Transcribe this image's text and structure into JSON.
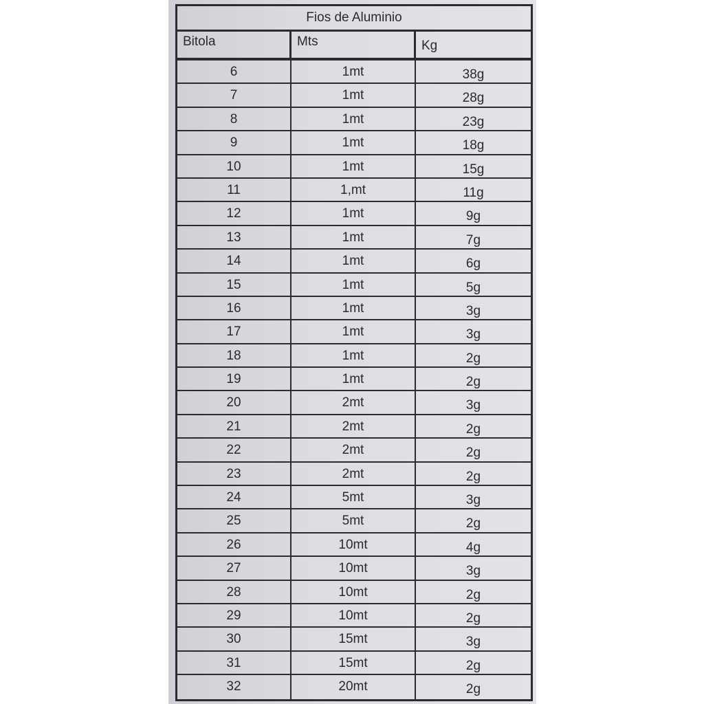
{
  "title": "Fios de Aluminio",
  "headers": {
    "bitola": "Bitola",
    "mts": "Mts",
    "kg": "Kg"
  },
  "rows": [
    {
      "bitola": "6",
      "mts": "1mt",
      "kg": "38g"
    },
    {
      "bitola": "7",
      "mts": "1mt",
      "kg": "28g"
    },
    {
      "bitola": "8",
      "mts": "1mt",
      "kg": "23g"
    },
    {
      "bitola": "9",
      "mts": "1mt",
      "kg": "18g"
    },
    {
      "bitola": "10",
      "mts": "1mt",
      "kg": "15g"
    },
    {
      "bitola": "11",
      "mts": "1,mt",
      "kg": "11g"
    },
    {
      "bitola": "12",
      "mts": "1mt",
      "kg": "9g"
    },
    {
      "bitola": "13",
      "mts": "1mt",
      "kg": "7g"
    },
    {
      "bitola": "14",
      "mts": "1mt",
      "kg": "6g"
    },
    {
      "bitola": "15",
      "mts": "1mt",
      "kg": "5g"
    },
    {
      "bitola": "16",
      "mts": "1mt",
      "kg": "3g"
    },
    {
      "bitola": "17",
      "mts": "1mt",
      "kg": "3g"
    },
    {
      "bitola": "18",
      "mts": "1mt",
      "kg": "2g"
    },
    {
      "bitola": "19",
      "mts": "1mt",
      "kg": "2g"
    },
    {
      "bitola": "20",
      "mts": "2mt",
      "kg": "3g"
    },
    {
      "bitola": "21",
      "mts": "2mt",
      "kg": "2g"
    },
    {
      "bitola": "22",
      "mts": "2mt",
      "kg": "2g"
    },
    {
      "bitola": "23",
      "mts": "2mt",
      "kg": "2g"
    },
    {
      "bitola": "24",
      "mts": "5mt",
      "kg": "3g"
    },
    {
      "bitola": "25",
      "mts": "5mt",
      "kg": "2g"
    },
    {
      "bitola": "26",
      "mts": "10mt",
      "kg": "4g"
    },
    {
      "bitola": "27",
      "mts": "10mt",
      "kg": "3g"
    },
    {
      "bitola": "28",
      "mts": "10mt",
      "kg": "2g"
    },
    {
      "bitola": "29",
      "mts": "10mt",
      "kg": "2g"
    },
    {
      "bitola": "30",
      "mts": "15mt",
      "kg": "3g"
    },
    {
      "bitola": "31",
      "mts": "15mt",
      "kg": "2g"
    },
    {
      "bitola": "32",
      "mts": "20mt",
      "kg": "2g"
    }
  ]
}
